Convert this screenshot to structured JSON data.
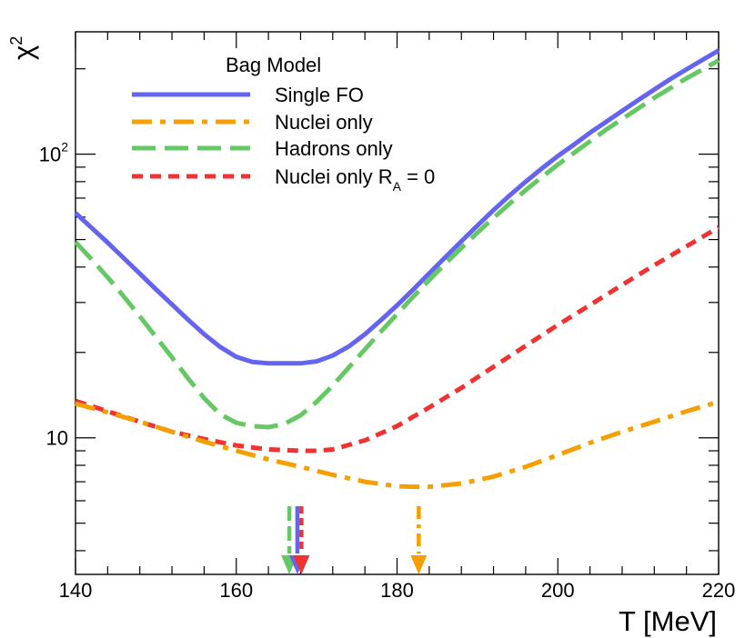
{
  "chart_data": {
    "type": "line",
    "title": "",
    "xlabel": "T [MeV]",
    "ylabel": "χ",
    "ylabel_sup": "2",
    "xlim": [
      140,
      220
    ],
    "ylim": [
      3.3,
      270
    ],
    "yscale": "log",
    "grid": false,
    "x_ticks": [
      140,
      160,
      180,
      200,
      220
    ],
    "x_tick_labels": [
      "140",
      "160",
      "180",
      "200",
      "220"
    ],
    "y_tick_labels": [
      {
        "value": 10,
        "label": "10",
        "sup": ""
      },
      {
        "value": 100,
        "label": "10",
        "sup": "2"
      }
    ],
    "legend": {
      "title": "Bag Model",
      "placement": "top-left"
    },
    "series": [
      {
        "name": "Single FO",
        "name_sub": "",
        "name_suffix": "",
        "color": "#6464f0",
        "style": "solid",
        "x": [
          140,
          142,
          144,
          146,
          148,
          150,
          152,
          154,
          156,
          158,
          160,
          162,
          164,
          166,
          168,
          170,
          172,
          174,
          176,
          178,
          180,
          182,
          184,
          186,
          188,
          190,
          192,
          194,
          196,
          198,
          200,
          202,
          204,
          206,
          208,
          210,
          212,
          214,
          216,
          218,
          220
        ],
        "y": [
          62,
          55,
          48.8,
          43,
          37.9,
          33.4,
          29.5,
          26.1,
          23.2,
          20.9,
          19.3,
          18.5,
          18.3,
          18.3,
          18.3,
          18.6,
          19.5,
          21,
          23.2,
          26,
          29.3,
          33.3,
          38,
          43.3,
          49.3,
          56,
          63.5,
          71.5,
          80,
          89,
          98.5,
          108,
          119,
          130,
          142,
          155,
          169,
          184,
          199,
          215,
          232
        ],
        "min_marker_x": 167.6
      },
      {
        "name": "Nuclei only",
        "name_sub": "",
        "name_suffix": "",
        "color": "#f5a000",
        "style": "dashdot",
        "x": [
          140,
          144,
          148,
          152,
          156,
          160,
          164,
          168,
          172,
          176,
          180,
          182,
          184,
          188,
          192,
          196,
          200,
          204,
          208,
          212,
          216,
          220
        ],
        "y": [
          13.2,
          12.3,
          11.4,
          10.5,
          9.7,
          9.0,
          8.4,
          7.9,
          7.4,
          7.0,
          6.75,
          6.72,
          6.72,
          6.9,
          7.3,
          7.9,
          8.7,
          9.6,
          10.5,
          11.4,
          12.4,
          13.4
        ],
        "min_marker_x": 182.7
      },
      {
        "name": "Hadrons only",
        "name_sub": "",
        "name_suffix": "",
        "color": "#64c864",
        "style": "dashed",
        "x": [
          140,
          142,
          144,
          146,
          148,
          150,
          152,
          154,
          156,
          158,
          160,
          162,
          164,
          166,
          168,
          170,
          172,
          174,
          176,
          178,
          180,
          182,
          184,
          186,
          188,
          190,
          192,
          194,
          196,
          198,
          200,
          202,
          204,
          206,
          208,
          210,
          212,
          214,
          216,
          218,
          220
        ],
        "y": [
          49,
          42.6,
          36.8,
          31.5,
          26.8,
          22.7,
          19.2,
          16.2,
          13.8,
          12.1,
          11.3,
          11.0,
          10.9,
          11.2,
          12.0,
          13.4,
          15.3,
          17.7,
          20.5,
          23.7,
          27.3,
          31.4,
          36.0,
          41.1,
          46.7,
          52.9,
          59.6,
          66.9,
          74.7,
          83.0,
          91.9,
          101,
          111,
          122,
          133,
          145,
          158,
          171,
          185,
          199,
          214
        ],
        "min_marker_x": 166.6
      },
      {
        "name": "Nuclei only R",
        "name_sub": "A",
        "name_suffix": " = 0",
        "color": "#f03232",
        "style": "dotted",
        "x": [
          140,
          144,
          148,
          152,
          156,
          160,
          164,
          168,
          170,
          172,
          176,
          180,
          184,
          188,
          192,
          196,
          200,
          204,
          208,
          212,
          216,
          220
        ],
        "y": [
          13.5,
          12.4,
          11.4,
          10.5,
          9.9,
          9.4,
          9.1,
          9.0,
          9.0,
          9.1,
          9.8,
          11.0,
          12.8,
          15.0,
          17.8,
          21.1,
          25.0,
          29.4,
          34.6,
          40.6,
          47.3,
          55.2
        ],
        "min_marker_x": 168.1
      }
    ]
  }
}
